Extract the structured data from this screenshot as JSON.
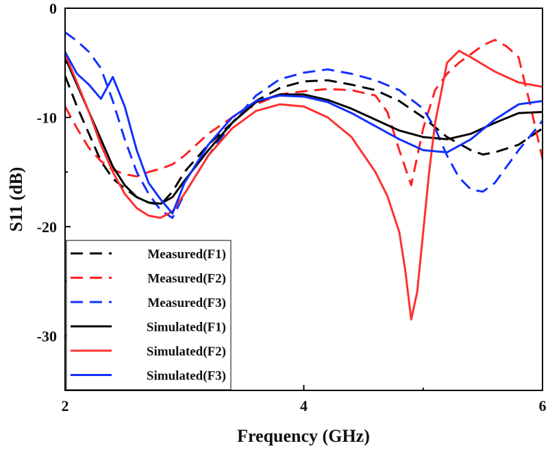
{
  "chart_data": {
    "type": "line",
    "title": "",
    "xlabel": "Frequency (GHz)",
    "ylabel": "S11 (dB)",
    "xlim": [
      2,
      6
    ],
    "ylim": [
      -35,
      0
    ],
    "xticks": [
      2,
      4,
      6
    ],
    "yticks": [
      0,
      -10,
      -20,
      -30
    ],
    "grid": false,
    "legend_position": "bottom-left",
    "series": [
      {
        "name": "Measured(F1)",
        "color": "#000000",
        "dash": "dashed",
        "x": [
          2.0,
          2.1,
          2.2,
          2.3,
          2.4,
          2.5,
          2.6,
          2.7,
          2.8,
          2.9,
          3.0,
          3.2,
          3.4,
          3.6,
          3.8,
          4.0,
          4.2,
          4.4,
          4.6,
          4.8,
          5.0,
          5.2,
          5.4,
          5.5,
          5.6,
          5.8,
          6.0
        ],
        "y": [
          -6.2,
          -9.0,
          -11.5,
          -14.0,
          -15.6,
          -16.5,
          -17.3,
          -17.8,
          -18.0,
          -16.8,
          -15.0,
          -12.5,
          -10.5,
          -8.5,
          -7.3,
          -6.7,
          -6.6,
          -7.0,
          -7.5,
          -8.5,
          -10.0,
          -11.8,
          -13.0,
          -13.4,
          -13.2,
          -12.5,
          -11.0
        ]
      },
      {
        "name": "Measured(F2)",
        "color": "#ff2020",
        "dash": "dashed",
        "x": [
          2.0,
          2.1,
          2.2,
          2.3,
          2.4,
          2.5,
          2.6,
          2.7,
          2.8,
          2.9,
          3.0,
          3.2,
          3.4,
          3.6,
          3.8,
          4.0,
          4.2,
          4.4,
          4.6,
          4.7,
          4.8,
          4.9,
          5.0,
          5.1,
          5.2,
          5.3,
          5.4,
          5.5,
          5.6,
          5.7,
          5.8,
          5.9,
          6.0
        ],
        "y": [
          -9.0,
          -11.0,
          -12.8,
          -14.0,
          -14.8,
          -15.2,
          -15.4,
          -15.0,
          -14.7,
          -14.3,
          -13.5,
          -11.5,
          -10.0,
          -8.8,
          -7.9,
          -7.6,
          -7.4,
          -7.5,
          -8.0,
          -9.5,
          -13.0,
          -16.2,
          -11.0,
          -7.5,
          -6.0,
          -5.0,
          -4.2,
          -3.4,
          -2.9,
          -3.5,
          -4.5,
          -9.0,
          -13.8
        ]
      },
      {
        "name": "Measured(F3)",
        "color": "#1030ff",
        "dash": "dashed",
        "x": [
          2.0,
          2.1,
          2.2,
          2.3,
          2.4,
          2.5,
          2.6,
          2.7,
          2.8,
          2.9,
          3.0,
          3.2,
          3.4,
          3.6,
          3.8,
          4.0,
          4.2,
          4.4,
          4.6,
          4.8,
          5.0,
          5.1,
          5.2,
          5.3,
          5.4,
          5.5,
          5.6,
          5.8,
          6.0
        ],
        "y": [
          -2.2,
          -3.0,
          -4.0,
          -5.5,
          -8.5,
          -12.0,
          -15.0,
          -17.0,
          -18.5,
          -19.2,
          -17.0,
          -13.5,
          -10.5,
          -8.0,
          -6.5,
          -5.9,
          -5.6,
          -6.0,
          -6.6,
          -7.5,
          -9.2,
          -11.0,
          -13.5,
          -15.5,
          -16.6,
          -16.8,
          -16.0,
          -13.0,
          -10.3
        ]
      },
      {
        "name": "Simulated(F1)",
        "color": "#000000",
        "dash": "solid",
        "x": [
          2.0,
          2.1,
          2.2,
          2.3,
          2.4,
          2.5,
          2.6,
          2.7,
          2.8,
          2.9,
          3.0,
          3.2,
          3.4,
          3.6,
          3.8,
          4.0,
          4.2,
          4.4,
          4.6,
          4.8,
          5.0,
          5.2,
          5.4,
          5.6,
          5.8,
          6.0
        ],
        "y": [
          -4.5,
          -7.0,
          -9.5,
          -12.0,
          -14.5,
          -16.2,
          -17.3,
          -17.8,
          -17.9,
          -17.3,
          -15.8,
          -13.0,
          -10.5,
          -8.6,
          -7.9,
          -7.9,
          -8.4,
          -9.2,
          -10.2,
          -11.2,
          -11.8,
          -12.0,
          -11.5,
          -10.5,
          -9.6,
          -9.5
        ]
      },
      {
        "name": "Simulated(F2)",
        "color": "#ff3030",
        "dash": "solid",
        "x": [
          2.0,
          2.1,
          2.2,
          2.3,
          2.4,
          2.5,
          2.6,
          2.7,
          2.8,
          2.9,
          3.0,
          3.2,
          3.4,
          3.6,
          3.8,
          4.0,
          4.2,
          4.4,
          4.6,
          4.7,
          4.8,
          4.85,
          4.9,
          4.95,
          5.0,
          5.05,
          5.1,
          5.2,
          5.3,
          5.4,
          5.6,
          5.8,
          6.0
        ],
        "y": [
          -4.2,
          -6.8,
          -9.5,
          -12.5,
          -15.0,
          -17.0,
          -18.3,
          -19.0,
          -19.2,
          -18.6,
          -17.0,
          -13.5,
          -11.0,
          -9.4,
          -8.8,
          -9.0,
          -10.0,
          -11.8,
          -15.0,
          -17.2,
          -20.5,
          -24.0,
          -28.5,
          -26.0,
          -20.5,
          -15.0,
          -10.5,
          -5.0,
          -3.9,
          -4.5,
          -5.8,
          -6.8,
          -7.2
        ]
      },
      {
        "name": "Simulated(F3)",
        "color": "#1030ff",
        "dash": "solid",
        "x": [
          2.0,
          2.1,
          2.2,
          2.3,
          2.4,
          2.5,
          2.6,
          2.7,
          2.8,
          2.9,
          3.0,
          3.2,
          3.4,
          3.6,
          3.8,
          4.0,
          4.2,
          4.4,
          4.6,
          4.8,
          5.0,
          5.2,
          5.4,
          5.6,
          5.8,
          6.0
        ],
        "y": [
          -4.0,
          -6.0,
          -7.0,
          -8.3,
          -6.3,
          -9.0,
          -13.0,
          -16.0,
          -17.5,
          -18.8,
          -16.0,
          -12.5,
          -10.0,
          -8.5,
          -8.0,
          -8.1,
          -8.6,
          -9.6,
          -10.8,
          -12.0,
          -13.0,
          -13.2,
          -12.0,
          -10.2,
          -8.8,
          -8.5
        ]
      }
    ]
  }
}
